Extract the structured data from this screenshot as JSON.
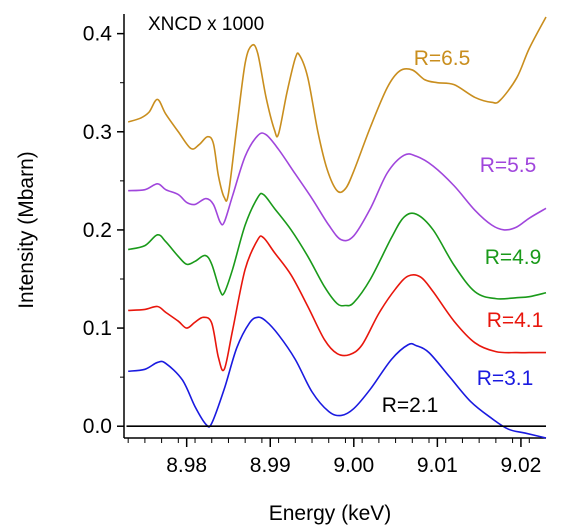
{
  "chart_data": {
    "type": "line",
    "title": "",
    "annotation": "XNCD x 1000",
    "xlabel": "Energy (keV)",
    "ylabel": "Intensity (Mbarn)",
    "xlim": [
      8.9725,
      9.023
    ],
    "ylim": [
      -0.012,
      0.42
    ],
    "x_ticks": [
      8.98,
      8.99,
      9.0,
      9.01,
      9.02
    ],
    "x_tick_labels": [
      "8.98",
      "8.99",
      "9.00",
      "9.01",
      "9.02"
    ],
    "y_ticks": [
      0.0,
      0.1,
      0.2,
      0.3,
      0.4
    ],
    "y_tick_labels": [
      "0.0",
      "0.1",
      "0.2",
      "0.3",
      "0.4"
    ],
    "grid": false,
    "series": [
      {
        "name": "R=6.5",
        "color": "#c98e1e",
        "points": [
          [
            8.973,
            0.31
          ],
          [
            8.9745,
            0.314
          ],
          [
            8.9755,
            0.32
          ],
          [
            8.9765,
            0.333
          ],
          [
            8.9775,
            0.318
          ],
          [
            8.979,
            0.3
          ],
          [
            8.9805,
            0.283
          ],
          [
            8.9815,
            0.287
          ],
          [
            8.9825,
            0.295
          ],
          [
            8.9832,
            0.288
          ],
          [
            8.9838,
            0.255
          ],
          [
            8.9845,
            0.233
          ],
          [
            8.985,
            0.237
          ],
          [
            8.986,
            0.305
          ],
          [
            8.987,
            0.37
          ],
          [
            8.9878,
            0.388
          ],
          [
            8.9885,
            0.38
          ],
          [
            8.9895,
            0.335
          ],
          [
            8.9905,
            0.302
          ],
          [
            8.991,
            0.298
          ],
          [
            8.992,
            0.34
          ],
          [
            8.993,
            0.375
          ],
          [
            8.9935,
            0.378
          ],
          [
            8.9945,
            0.355
          ],
          [
            8.9957,
            0.3
          ],
          [
            8.9968,
            0.262
          ],
          [
            8.998,
            0.24
          ],
          [
            8.999,
            0.242
          ],
          [
            9.0,
            0.26
          ],
          [
            9.002,
            0.305
          ],
          [
            9.004,
            0.345
          ],
          [
            9.0055,
            0.362
          ],
          [
            9.007,
            0.363
          ],
          [
            9.0085,
            0.353
          ],
          [
            9.01,
            0.35
          ],
          [
            9.012,
            0.348
          ],
          [
            9.0145,
            0.335
          ],
          [
            9.0165,
            0.33
          ],
          [
            9.0175,
            0.332
          ],
          [
            9.0195,
            0.355
          ],
          [
            9.021,
            0.385
          ],
          [
            9.023,
            0.417
          ]
        ]
      },
      {
        "name": "R=5.5",
        "color": "#a046dc",
        "points": [
          [
            8.973,
            0.24
          ],
          [
            8.975,
            0.241
          ],
          [
            8.9765,
            0.247
          ],
          [
            8.9775,
            0.241
          ],
          [
            8.979,
            0.236
          ],
          [
            8.98,
            0.228
          ],
          [
            8.981,
            0.226
          ],
          [
            8.9823,
            0.232
          ],
          [
            8.9832,
            0.226
          ],
          [
            8.984,
            0.208
          ],
          [
            8.9845,
            0.208
          ],
          [
            8.9855,
            0.235
          ],
          [
            8.987,
            0.275
          ],
          [
            8.9885,
            0.296
          ],
          [
            8.9895,
            0.297
          ],
          [
            8.991,
            0.282
          ],
          [
            8.993,
            0.257
          ],
          [
            8.995,
            0.232
          ],
          [
            8.997,
            0.205
          ],
          [
            8.9985,
            0.19
          ],
          [
            9.0,
            0.194
          ],
          [
            9.002,
            0.222
          ],
          [
            9.004,
            0.258
          ],
          [
            9.006,
            0.276
          ],
          [
            9.0075,
            0.275
          ],
          [
            9.0095,
            0.265
          ],
          [
            9.012,
            0.245
          ],
          [
            9.0145,
            0.22
          ],
          [
            9.0165,
            0.205
          ],
          [
            9.018,
            0.2
          ],
          [
            9.0195,
            0.203
          ],
          [
            9.021,
            0.212
          ],
          [
            9.023,
            0.222
          ]
        ]
      },
      {
        "name": "R=4.9",
        "color": "#1a9a1a",
        "points": [
          [
            8.973,
            0.18
          ],
          [
            8.975,
            0.184
          ],
          [
            8.9765,
            0.195
          ],
          [
            8.9775,
            0.188
          ],
          [
            8.979,
            0.173
          ],
          [
            8.98,
            0.165
          ],
          [
            8.981,
            0.168
          ],
          [
            8.9822,
            0.174
          ],
          [
            8.983,
            0.165
          ],
          [
            8.984,
            0.138
          ],
          [
            8.9845,
            0.136
          ],
          [
            8.9855,
            0.16
          ],
          [
            8.987,
            0.205
          ],
          [
            8.9885,
            0.233
          ],
          [
            8.9892,
            0.236
          ],
          [
            8.9905,
            0.222
          ],
          [
            8.9925,
            0.2
          ],
          [
            8.9945,
            0.173
          ],
          [
            8.9965,
            0.142
          ],
          [
            8.998,
            0.125
          ],
          [
            8.999,
            0.123
          ],
          [
            9.0,
            0.126
          ],
          [
            9.002,
            0.15
          ],
          [
            9.0045,
            0.192
          ],
          [
            9.006,
            0.213
          ],
          [
            9.0075,
            0.216
          ],
          [
            9.0095,
            0.2
          ],
          [
            9.012,
            0.164
          ],
          [
            9.0145,
            0.137
          ],
          [
            9.017,
            0.13
          ],
          [
            9.0195,
            0.131
          ],
          [
            9.021,
            0.132
          ],
          [
            9.023,
            0.136
          ]
        ]
      },
      {
        "name": "R=4.1",
        "color": "#e8160c",
        "points": [
          [
            8.973,
            0.118
          ],
          [
            8.975,
            0.119
          ],
          [
            8.9765,
            0.122
          ],
          [
            8.9775,
            0.116
          ],
          [
            8.979,
            0.107
          ],
          [
            8.98,
            0.1
          ],
          [
            8.981,
            0.106
          ],
          [
            8.982,
            0.111
          ],
          [
            8.983,
            0.105
          ],
          [
            8.9838,
            0.07
          ],
          [
            8.9845,
            0.058
          ],
          [
            8.9855,
            0.098
          ],
          [
            8.987,
            0.16
          ],
          [
            8.9885,
            0.19
          ],
          [
            8.9892,
            0.192
          ],
          [
            8.9905,
            0.177
          ],
          [
            8.9925,
            0.154
          ],
          [
            8.9945,
            0.122
          ],
          [
            8.9965,
            0.088
          ],
          [
            8.998,
            0.074
          ],
          [
            8.9995,
            0.073
          ],
          [
            9.001,
            0.083
          ],
          [
            9.003,
            0.115
          ],
          [
            9.005,
            0.14
          ],
          [
            9.0065,
            0.153
          ],
          [
            9.008,
            0.152
          ],
          [
            9.0095,
            0.137
          ],
          [
            9.012,
            0.107
          ],
          [
            9.0145,
            0.085
          ],
          [
            9.017,
            0.076
          ],
          [
            9.0195,
            0.075
          ],
          [
            9.021,
            0.075
          ],
          [
            9.023,
            0.075
          ]
        ]
      },
      {
        "name": "R=3.1",
        "color": "#1a1ae0",
        "points": [
          [
            8.973,
            0.056
          ],
          [
            8.975,
            0.058
          ],
          [
            8.9765,
            0.065
          ],
          [
            8.9775,
            0.064
          ],
          [
            8.9795,
            0.047
          ],
          [
            8.981,
            0.02
          ],
          [
            8.9823,
            0.002
          ],
          [
            8.983,
            0.003
          ],
          [
            8.9845,
            0.038
          ],
          [
            8.986,
            0.08
          ],
          [
            8.9875,
            0.105
          ],
          [
            8.9885,
            0.111
          ],
          [
            8.9895,
            0.107
          ],
          [
            8.991,
            0.093
          ],
          [
            8.993,
            0.068
          ],
          [
            8.995,
            0.035
          ],
          [
            8.997,
            0.015
          ],
          [
            8.9985,
            0.011
          ],
          [
            9.0,
            0.018
          ],
          [
            9.002,
            0.038
          ],
          [
            9.0045,
            0.068
          ],
          [
            9.0065,
            0.083
          ],
          [
            9.0075,
            0.082
          ],
          [
            9.009,
            0.075
          ],
          [
            9.0115,
            0.05
          ],
          [
            9.014,
            0.025
          ],
          [
            9.0165,
            0.008
          ],
          [
            9.0185,
            -0.003
          ],
          [
            9.0205,
            -0.007
          ],
          [
            9.023,
            -0.012
          ]
        ]
      },
      {
        "name": "R=2.1",
        "color": "#000000",
        "points": [
          [
            8.9728,
            0.0
          ],
          [
            9.023,
            0.0
          ]
        ]
      }
    ]
  }
}
